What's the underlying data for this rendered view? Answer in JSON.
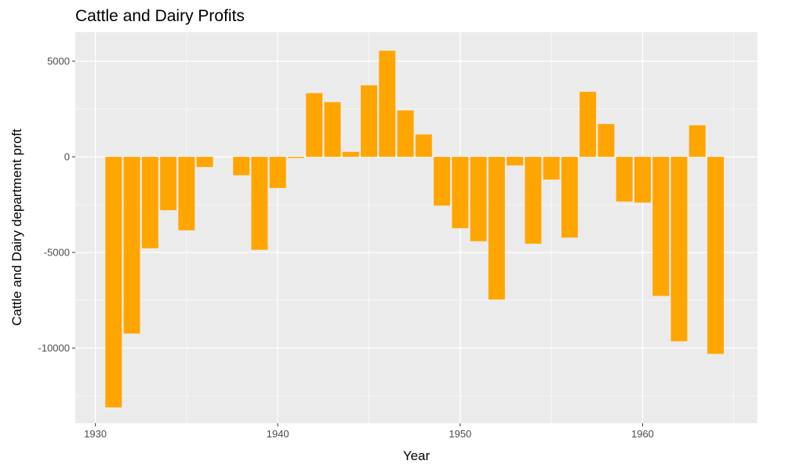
{
  "chart_data": {
    "type": "bar",
    "title": "Cattle and Dairy Profits",
    "xlabel": "Year",
    "ylabel": "Cattle and Dairy department proft",
    "x": [
      1931,
      1932,
      1933,
      1934,
      1935,
      1936,
      1938,
      1939,
      1940,
      1941,
      1942,
      1943,
      1944,
      1945,
      1946,
      1947,
      1948,
      1949,
      1950,
      1951,
      1952,
      1953,
      1954,
      1955,
      1956,
      1957,
      1958,
      1959,
      1960,
      1961,
      1962,
      1963,
      1964
    ],
    "values": [
      -13100,
      -9240,
      -4780,
      -2790,
      -3840,
      -530,
      -960,
      -4860,
      -1630,
      -60,
      3330,
      2860,
      260,
      3740,
      5550,
      2430,
      1170,
      -2550,
      -3730,
      -4410,
      -7460,
      -450,
      -4540,
      -1190,
      -4220,
      3400,
      1720,
      -2340,
      -2390,
      -7270,
      -9640,
      1650,
      -10300
    ],
    "xlim": [
      1928.9,
      1966.3
    ],
    "ylim": [
      -13930,
      6520
    ],
    "x_ticks": [
      1930,
      1940,
      1950,
      1960
    ],
    "x_tick_labels": [
      "1930",
      "1940",
      "1950",
      "1960"
    ],
    "y_ticks": [
      5000,
      0,
      -5000,
      -10000
    ],
    "y_tick_labels": [
      "5000",
      "0",
      "-5000",
      "-10000"
    ],
    "grid": true,
    "legend": "none",
    "colors": {
      "bar": "#FFA500",
      "panel": "#EBEBEB",
      "grid": "#FFFFFF"
    }
  }
}
